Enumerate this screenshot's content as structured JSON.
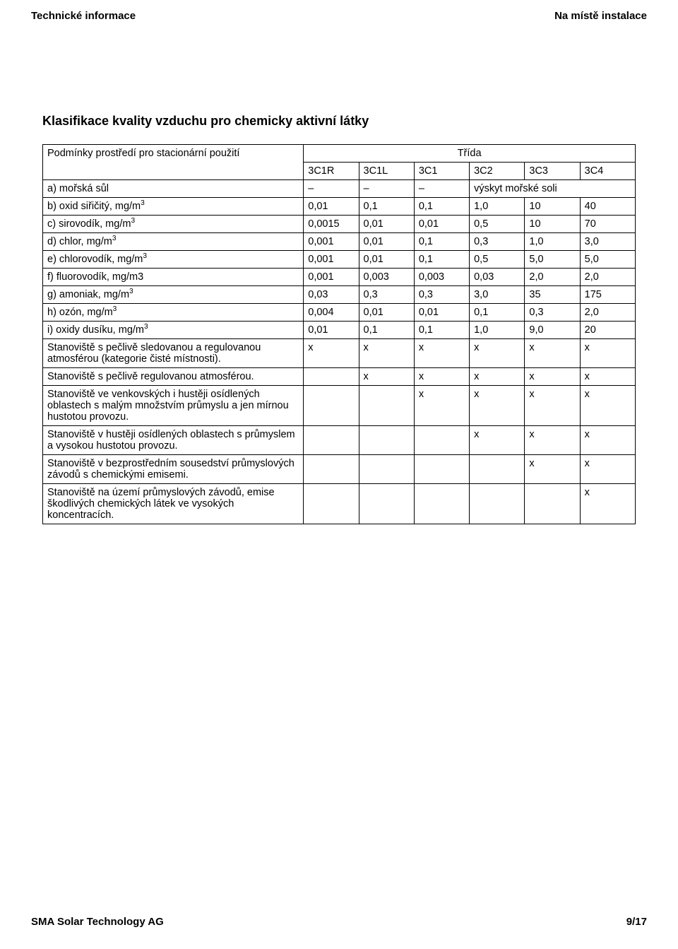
{
  "header": {
    "left": "Technické informace",
    "right": "Na místě instalace"
  },
  "section_title": "Klasifikace kvality vzduchu pro chemicky aktivní látky",
  "table": {
    "condition_label": "Podmínky prostředí pro stacionární použití",
    "class_label": "Třída",
    "columns": [
      "3C1R",
      "3C1L",
      "3C1",
      "3C2",
      "3C3",
      "3C4"
    ],
    "rows": [
      {
        "label_html": "a) mořská sůl",
        "cells": [
          "–",
          "–",
          "–",
          {
            "text": "výskyt mořské soli",
            "colspan": 3
          }
        ]
      },
      {
        "label_html": "b) oxid siřičitý, mg/m<sup>3</sup>",
        "cells": [
          "0,01",
          "0,1",
          "0,1",
          "1,0",
          "10",
          "40"
        ]
      },
      {
        "label_html": "c) sirovodík, mg/m<sup>3</sup>",
        "cells": [
          "0,0015",
          "0,01",
          "0,01",
          "0,5",
          "10",
          "70"
        ]
      },
      {
        "label_html": "d) chlor, mg/m<sup>3</sup>",
        "cells": [
          "0,001",
          "0,01",
          "0,1",
          "0,3",
          "1,0",
          "3,0"
        ]
      },
      {
        "label_html": "e) chlorovodík, mg/m<sup>3</sup>",
        "cells": [
          "0,001",
          "0,01",
          "0,1",
          "0,5",
          "5,0",
          "5,0"
        ]
      },
      {
        "label_html": "f) fluorovodík, mg/m3",
        "cells": [
          "0,001",
          "0,003",
          "0,003",
          "0,03",
          "2,0",
          "2,0"
        ]
      },
      {
        "label_html": "g) amoniak, mg/m<sup>3</sup>",
        "cells": [
          "0,03",
          "0,3",
          "0,3",
          "3,0",
          "35",
          "175"
        ]
      },
      {
        "label_html": "h) ozón, mg/m<sup>3</sup>",
        "cells": [
          "0,004",
          "0,01",
          "0,01",
          "0,1",
          "0,3",
          "2,0"
        ]
      },
      {
        "label_html": "i) oxidy dusíku, mg/m<sup>3</sup>",
        "cells": [
          "0,01",
          "0,1",
          "0,1",
          "1,0",
          "9,0",
          "20"
        ]
      },
      {
        "label_html": "Stanoviště s pečlivě sledovanou a regulovanou atmosférou (kategorie čisté místnosti).",
        "cells": [
          "x",
          "x",
          "x",
          "x",
          "x",
          "x"
        ]
      },
      {
        "label_html": "Stanoviště s pečlivě regulovanou atmosférou.",
        "cells": [
          "",
          "x",
          "x",
          "x",
          "x",
          "x"
        ]
      },
      {
        "label_html": "Stanoviště ve venkovských i hustěji osídlených oblastech s malým množstvím průmyslu a jen mírnou hustotou provozu.",
        "cells": [
          "",
          "",
          "x",
          "x",
          "x",
          "x"
        ]
      },
      {
        "label_html": "Stanoviště v hustěji osídlených oblastech s průmyslem a vysokou hustotou provozu.",
        "cells": [
          "",
          "",
          "",
          "x",
          "x",
          "x"
        ]
      },
      {
        "label_html": "Stanoviště v bezprostředním sousedství průmyslových závodů s chemickými emisemi.",
        "cells": [
          "",
          "",
          "",
          "",
          "x",
          "x"
        ]
      },
      {
        "label_html": "Stanoviště na území průmyslových závodů, emise škodlivých chemických látek ve vysokých koncentracích.",
        "cells": [
          "",
          "",
          "",
          "",
          "",
          "x"
        ]
      }
    ]
  },
  "footer": {
    "left": "SMA Solar Technology AG",
    "right": "9/17"
  }
}
